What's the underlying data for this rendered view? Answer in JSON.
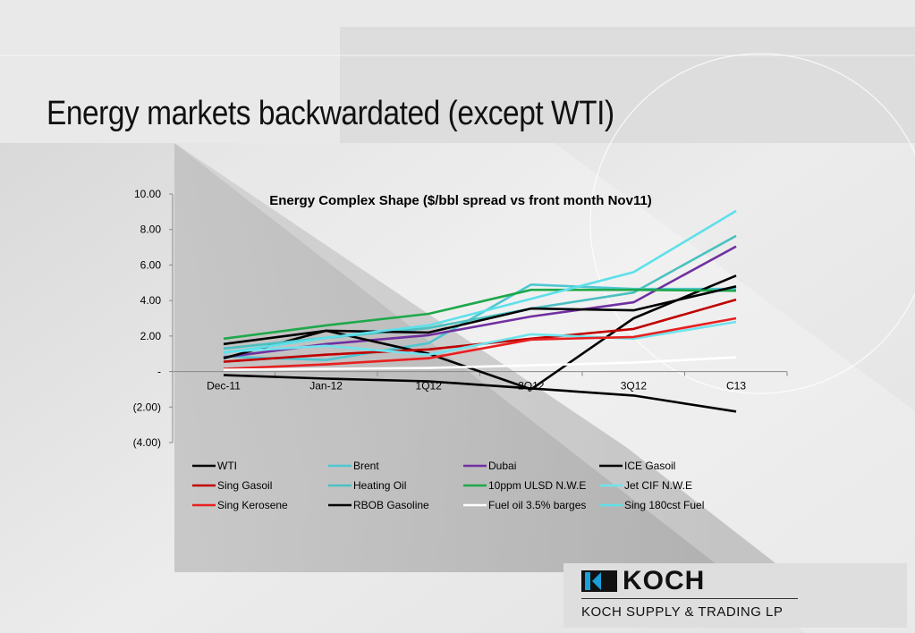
{
  "slide": {
    "title": "Energy markets backwardated (except WTI)"
  },
  "logo": {
    "wordmark": "KOCH",
    "subtitle": "KOCH SUPPLY & TRADING LP"
  },
  "chart_data": {
    "type": "line",
    "title": "Energy Complex Shape ($/bbl spread vs front month Nov11)",
    "xlabel": "",
    "ylabel": "",
    "categories": [
      "Dec-11",
      "Jan-12",
      "1Q12",
      "2Q12",
      "3Q12",
      "C13"
    ],
    "ylim": [
      -4,
      10
    ],
    "yticks": [
      10,
      8,
      6,
      4,
      2,
      0,
      -2,
      -4
    ],
    "ytick_labels": [
      "10.00",
      "8.00",
      "6.00",
      "4.00",
      "2.00",
      "-",
      "(2.00)",
      "(4.00)"
    ],
    "grid": false,
    "legend_position": "bottom",
    "series": [
      {
        "name": "WTI",
        "color": "#000000",
        "values": [
          -0.2,
          -0.4,
          -0.55,
          -0.95,
          -1.35,
          -2.25
        ]
      },
      {
        "name": "Brent",
        "color": "#4ec7d2",
        "values": [
          0.85,
          0.65,
          1.6,
          4.9,
          4.65,
          4.65
        ]
      },
      {
        "name": "Dubai",
        "color": "#7030a0",
        "values": [
          0.8,
          1.55,
          2.05,
          3.1,
          3.9,
          7.05
        ]
      },
      {
        "name": "ICE Gasoil",
        "color": "#000000",
        "values": [
          0.75,
          2.3,
          1.0,
          -1.0,
          3.0,
          5.4
        ]
      },
      {
        "name": "Sing Gasoil",
        "color": "#c00000",
        "values": [
          0.55,
          0.95,
          1.25,
          1.85,
          2.4,
          4.05
        ]
      },
      {
        "name": "Heating Oil",
        "color": "#4bc0c0",
        "values": [
          1.3,
          1.9,
          2.45,
          3.55,
          4.45,
          7.65
        ]
      },
      {
        "name": "10ppm ULSD N.W.E",
        "color": "#1ea84a",
        "values": [
          1.85,
          2.6,
          3.25,
          4.6,
          4.6,
          4.55
        ]
      },
      {
        "name": "Jet CIF N.W.E",
        "color": "#6fe3ee",
        "values": [
          1.1,
          1.45,
          0.95,
          2.1,
          1.85,
          2.8
        ]
      },
      {
        "name": "Sing Kerosene",
        "color": "#e82020",
        "values": [
          0.15,
          0.4,
          0.75,
          1.8,
          1.95,
          3.0
        ]
      },
      {
        "name": "RBOB Gasoline",
        "color": "#000000",
        "values": [
          1.55,
          2.3,
          2.2,
          3.55,
          3.45,
          4.8
        ]
      },
      {
        "name": "Fuel oil 3.5% barges",
        "color": "#ffffff",
        "values": [
          0.1,
          0.15,
          0.2,
          0.35,
          0.5,
          0.8
        ]
      },
      {
        "name": "Sing 180cst Fuel",
        "color": "#5ee0ea",
        "values": [
          1.05,
          1.9,
          2.6,
          4.1,
          5.6,
          9.05
        ]
      }
    ]
  }
}
